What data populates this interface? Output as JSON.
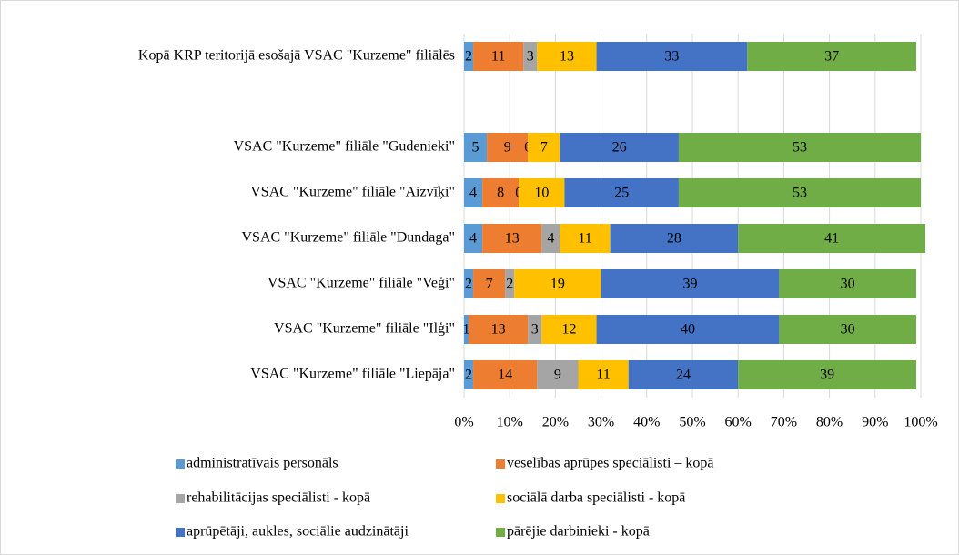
{
  "chart_data": {
    "type": "stacked-bar-horizontal",
    "categories": [
      "Kopā KRP teritorijā esošajā VSAC \"Kurzeme\" filiālēs",
      null,
      "VSAC \"Kurzeme\" filiāle \"Gudenieki\"",
      "VSAC \"Kurzeme\" filiāle \"Aizvīķi\"",
      "VSAC \"Kurzeme\" filiāle \"Dundaga\"",
      "VSAC \"Kurzeme\" filiāle \"Veģi\"",
      "VSAC \"Kurzeme\" filiāle \"Ilģi\"",
      "VSAC \"Kurzeme\" filiāle \"Liepāja\""
    ],
    "series": [
      {
        "name": "administratīvais personāls",
        "color": "#5b9bd5",
        "values": [
          2,
          null,
          5,
          4,
          4,
          2,
          1,
          2
        ]
      },
      {
        "name": "veselības aprūpes  speciālisti – kopā",
        "color": "#ed7d31",
        "values": [
          11,
          null,
          9,
          8,
          13,
          7,
          13,
          14
        ]
      },
      {
        "name": "rehabilitācijas speciālisti - kopā",
        "color": "#a5a5a5",
        "values": [
          3,
          null,
          0,
          0,
          4,
          2,
          3,
          9
        ]
      },
      {
        "name": "sociālā darba speciālisti - kopā",
        "color": "#ffc000",
        "values": [
          13,
          null,
          7,
          10,
          11,
          19,
          12,
          11
        ]
      },
      {
        "name": "aprūpētāji, aukles, sociālie audzinātāji",
        "color": "#4472c4",
        "values": [
          33,
          null,
          26,
          25,
          28,
          39,
          40,
          24
        ]
      },
      {
        "name": "pārējie darbinieki - kopā",
        "color": "#70ad47",
        "values": [
          37,
          null,
          53,
          53,
          41,
          30,
          30,
          39
        ]
      }
    ],
    "xlim": [
      0,
      100
    ],
    "xticks": [
      {
        "value": 0,
        "label": "0%"
      },
      {
        "value": 10,
        "label": "10%"
      },
      {
        "value": 20,
        "label": "20%"
      },
      {
        "value": 30,
        "label": "30%"
      },
      {
        "value": 40,
        "label": "40%"
      },
      {
        "value": 50,
        "label": "50%"
      },
      {
        "value": 60,
        "label": "60%"
      },
      {
        "value": 70,
        "label": "70%"
      },
      {
        "value": 80,
        "label": "80%"
      },
      {
        "value": 90,
        "label": "90%"
      },
      {
        "value": 100,
        "label": "100%"
      }
    ],
    "grid": true,
    "legend": "bottom"
  }
}
